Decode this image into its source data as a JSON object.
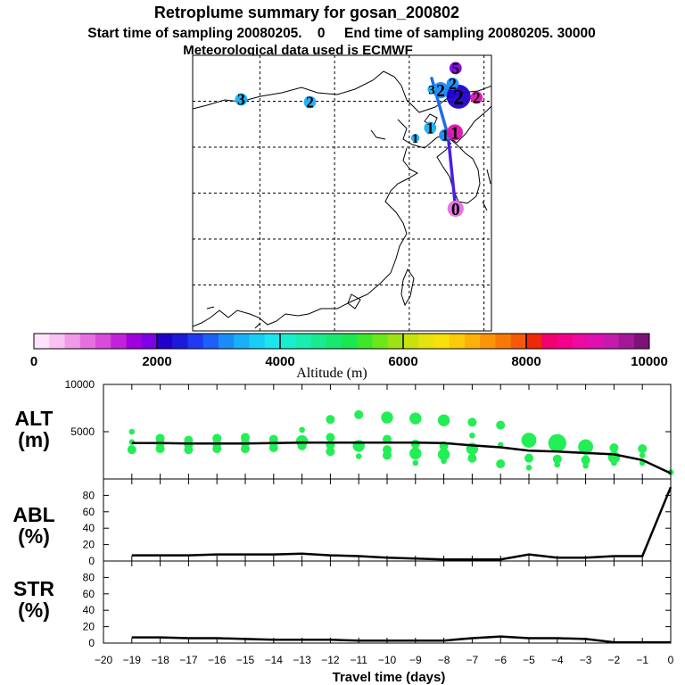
{
  "header": {
    "title": "Retroplume summary for gosan_200802",
    "sampling_line": "Start time of sampling 20080205.    0     End time of sampling 20080205. 30000",
    "met_line": "Meteorological data used is ECMWF"
  },
  "map": {
    "trajectory": [
      {
        "lon": 123.0,
        "lat": 47.5
      },
      {
        "lon": 125.2,
        "lat": 41.2
      },
      {
        "lon": 126.2,
        "lat": 33.3
      }
    ],
    "plume_markers": [
      {
        "label": "0",
        "lon": 126.2,
        "lat": 33.3,
        "size": 3,
        "altitude": 800
      },
      {
        "label": "1",
        "lon": 124.8,
        "lat": 41.3,
        "size": 2,
        "altitude": 3200
      },
      {
        "label": "1",
        "lon": 126.1,
        "lat": 41.6,
        "size": 3,
        "altitude": 9200
      },
      {
        "label": "1",
        "lon": 122.8,
        "lat": 42.1,
        "size": 2,
        "altitude": 3400
      },
      {
        "label": "1",
        "lon": 120.8,
        "lat": 41.0,
        "size": 1,
        "altitude": 3300
      },
      {
        "label": "2",
        "lon": 125.5,
        "lat": 46.0,
        "size": 2,
        "altitude": 3000
      },
      {
        "label": "2",
        "lon": 124.2,
        "lat": 46.2,
        "size": 3,
        "altitude": 3100
      },
      {
        "label": "2",
        "lon": 126.6,
        "lat": 45.5,
        "size": 5,
        "altitude": 2200
      },
      {
        "label": "2",
        "lon": 129.0,
        "lat": 45.4,
        "size": 2,
        "altitude": 9000
      },
      {
        "label": "2",
        "lon": 125.8,
        "lat": 46.9,
        "size": 2,
        "altitude": 3200
      },
      {
        "label": "2",
        "lon": 106.7,
        "lat": 44.9,
        "size": 2,
        "altitude": 3300
      },
      {
        "label": "3",
        "lon": 123.0,
        "lat": 46.3,
        "size": 1,
        "altitude": 3300
      },
      {
        "label": "3",
        "lon": 97.5,
        "lat": 45.2,
        "size": 2,
        "altitude": 3300
      },
      {
        "label": "5",
        "lon": 126.2,
        "lat": 48.6,
        "size": 2,
        "altitude": 1800
      }
    ]
  },
  "colorbar": {
    "label": "Altitude (m)",
    "tick_labels": [
      "0",
      "2000",
      "4000",
      "6000",
      "8000",
      "10000"
    ],
    "tick_values": [
      0,
      2000,
      4000,
      6000,
      8000,
      10000
    ],
    "colors": [
      "#fde3fb",
      "#f8c2f3",
      "#f09ae9",
      "#e66fe0",
      "#d94bda",
      "#c323d8",
      "#a100de",
      "#7f00e6",
      "#2200cc",
      "#1a1ad8",
      "#1f3af0",
      "#1c60f8",
      "#1a8cf8",
      "#19b0f8",
      "#18cef4",
      "#1ae6ee",
      "#19eed0",
      "#1aedb0",
      "#18ea90",
      "#18e870",
      "#1ce650",
      "#3ee62c",
      "#6ee61c",
      "#9ee214",
      "#c8e20e",
      "#e6e40e",
      "#f8e008",
      "#fcca08",
      "#fcb008",
      "#fa9408",
      "#f87808",
      "#f45a08",
      "#f02808",
      "#f20070",
      "#f4008c",
      "#ee0aa0",
      "#de10b0",
      "#c41aae",
      "#a41898",
      "#7e1278"
    ],
    "outline_color": "#000000"
  },
  "axes": {
    "x_label": "Travel time (days)",
    "x_tick_labels": [
      "−20",
      "−19",
      "−18",
      "−17",
      "−16",
      "−15",
      "−14",
      "−13",
      "−12",
      "−11",
      "−10",
      "−9",
      "−8",
      "−7",
      "−6",
      "−5",
      "−4",
      "−3",
      "−2",
      "−1",
      "0"
    ],
    "alt_y_tick_labels": [
      "5000",
      "10000"
    ],
    "pct_y_tick_labels": [
      "0",
      "20",
      "40",
      "60",
      "80"
    ]
  },
  "colors": {
    "cluster_color": "#22ee55",
    "line_color": "#000000",
    "trajectory_color": "#1f55ee",
    "grid_color": "#000000"
  },
  "chart_data": [
    {
      "type": "scatter",
      "title": "ALT (m)",
      "panel_label_line1": "ALT",
      "panel_label_line2": "(m)",
      "xlabel": "Travel time (days)",
      "ylabel": "ALT (m)",
      "xlim": [
        -20,
        0
      ],
      "ylim": [
        0,
        10000
      ],
      "grid": false,
      "series": [
        {
          "name": "mean altitude",
          "kind": "line",
          "x": [
            -19,
            -18,
            -17,
            -16,
            -15,
            -14,
            -13,
            -12,
            -11,
            -10,
            -9,
            -8,
            -7,
            -6,
            -5,
            -4,
            -3,
            -2,
            -1,
            0
          ],
          "values": [
            3800,
            3800,
            3750,
            3750,
            3750,
            3800,
            3850,
            3850,
            3850,
            3850,
            3850,
            3800,
            3550,
            3350,
            3000,
            2900,
            2750,
            2600,
            2000,
            600
          ]
        },
        {
          "name": "plume clusters",
          "kind": "points",
          "x": [
            -19,
            -19,
            -19,
            -18,
            -18,
            -18,
            -17,
            -17,
            -17,
            -16,
            -16,
            -16,
            -15,
            -15,
            -15,
            -14,
            -14,
            -14,
            -13,
            -13,
            -13,
            -12,
            -12,
            -12,
            -12,
            -11,
            -11,
            -11,
            -10,
            -10,
            -10,
            -10,
            -9,
            -9,
            -9,
            -9,
            -8,
            -8,
            -8,
            -8,
            -7,
            -7,
            -7,
            -7,
            -6,
            -6,
            -6,
            -5,
            -5,
            -5,
            -4,
            -4,
            -4,
            -3,
            -3,
            -3,
            -3,
            -2,
            -2,
            -2,
            -1,
            -1,
            -1,
            0
          ],
          "y": [
            5000,
            3900,
            3100,
            4300,
            3800,
            3200,
            4100,
            3600,
            3100,
            4300,
            3700,
            3200,
            4400,
            3800,
            3200,
            4200,
            3800,
            3300,
            5200,
            4000,
            3500,
            6300,
            4400,
            3600,
            2900,
            6800,
            3500,
            2400,
            6500,
            4200,
            3100,
            2500,
            6400,
            3700,
            2700,
            1700,
            6200,
            3500,
            2600,
            1900,
            6000,
            4600,
            3200,
            2200,
            5700,
            3600,
            1600,
            4100,
            2200,
            1200,
            3800,
            2100,
            1500,
            3400,
            2800,
            2000,
            1400,
            3300,
            2300,
            1700,
            3200,
            2500,
            1700,
            700
          ],
          "sizes": [
            1,
            1,
            2,
            2,
            2,
            2,
            2,
            2,
            2,
            2,
            2,
            2,
            2,
            2,
            2,
            2,
            2,
            2,
            1,
            3,
            2,
            2,
            2,
            2,
            2,
            2,
            3,
            1,
            3,
            2,
            2,
            2,
            3,
            2,
            3,
            1,
            3,
            2,
            3,
            1,
            2,
            1,
            3,
            2,
            2,
            1,
            2,
            4,
            2,
            1,
            5,
            2,
            1,
            4,
            1,
            2,
            1,
            2,
            3,
            1,
            2,
            1,
            1,
            1
          ]
        }
      ]
    },
    {
      "type": "line",
      "title": "ABL (%)",
      "panel_label_line1": "ABL",
      "panel_label_line2": "(%)",
      "xlabel": "Travel time (days)",
      "ylabel": "ABL (%)",
      "xlim": [
        -20,
        0
      ],
      "ylim": [
        0,
        100
      ],
      "x": [
        -19,
        -18,
        -17,
        -16,
        -15,
        -14,
        -13,
        -12,
        -11,
        -10,
        -9,
        -8,
        -7,
        -6,
        -5,
        -4,
        -3,
        -2,
        -1,
        0
      ],
      "values": [
        7,
        7,
        7,
        8,
        8,
        8,
        9,
        7,
        6,
        4,
        3,
        2,
        2,
        2,
        8,
        4,
        4,
        6,
        6,
        90
      ]
    },
    {
      "type": "line",
      "title": "STR (%)",
      "panel_label_line1": "STR",
      "panel_label_line2": "(%)",
      "xlabel": "Travel time (days)",
      "ylabel": "STR (%)",
      "xlim": [
        -20,
        0
      ],
      "ylim": [
        0,
        100
      ],
      "x": [
        -19,
        -18,
        -17,
        -16,
        -15,
        -14,
        -13,
        -12,
        -11,
        -10,
        -9,
        -8,
        -7,
        -6,
        -5,
        -4,
        -3,
        -2,
        -1,
        0
      ],
      "values": [
        7,
        7,
        6,
        6,
        5,
        4,
        4,
        4,
        3,
        3,
        3,
        3,
        6,
        8,
        6,
        6,
        5,
        1,
        1,
        1
      ]
    }
  ]
}
